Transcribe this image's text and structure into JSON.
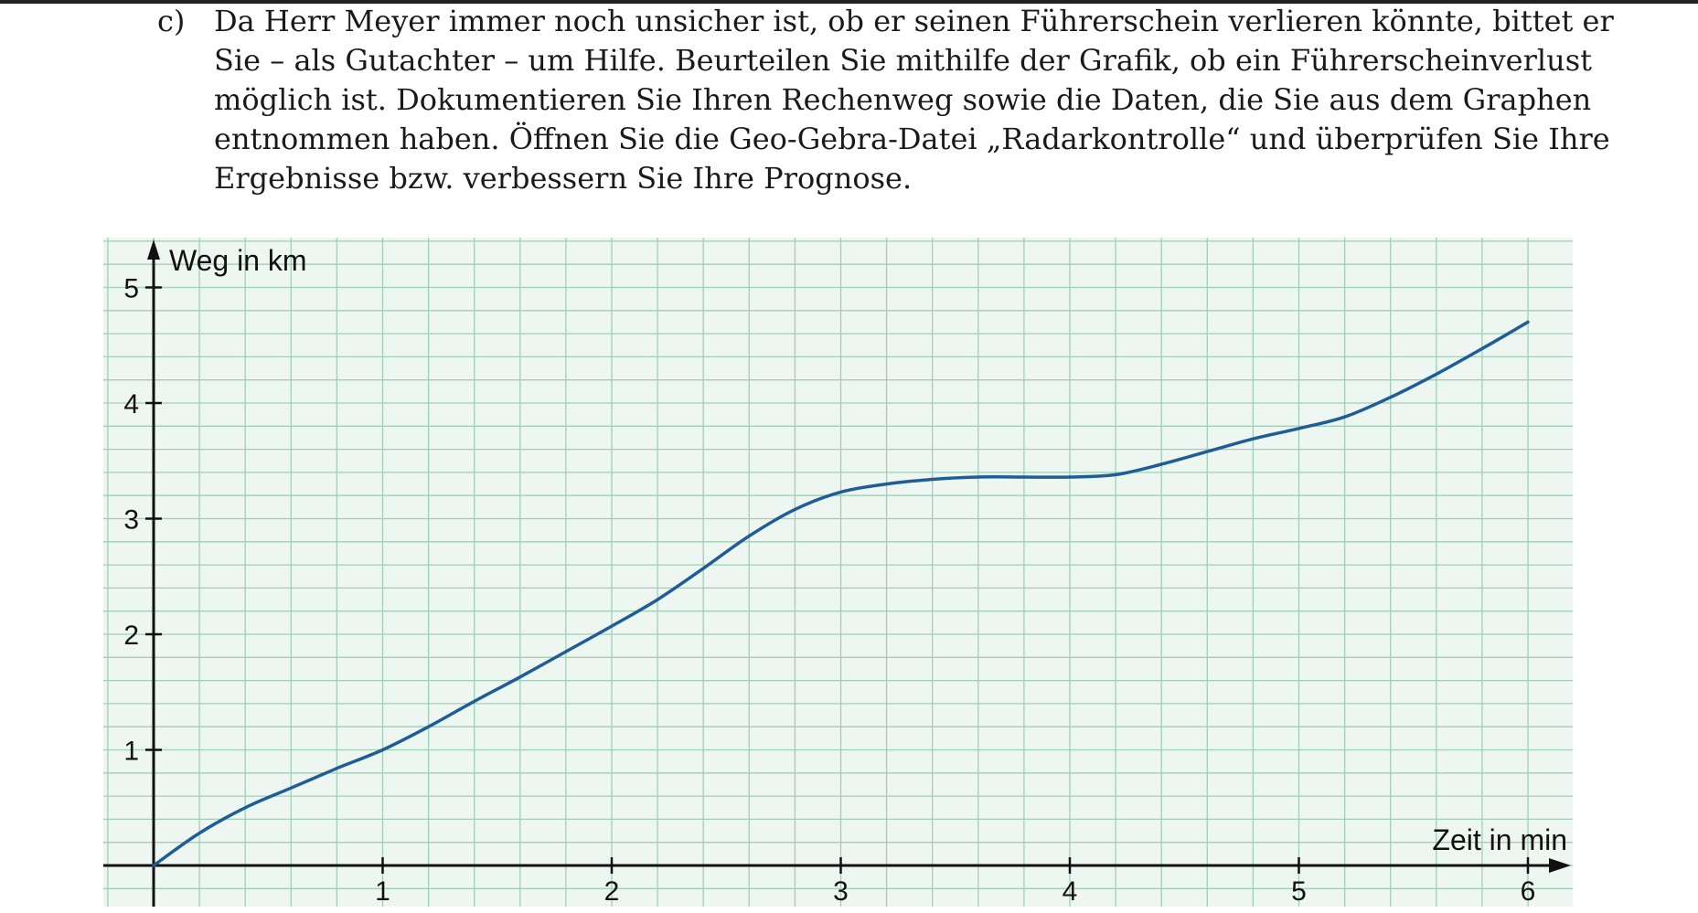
{
  "task": {
    "label": "c)",
    "lines": [
      "Da Herr Meyer immer noch unsicher ist, ob er seinen Führerschein verlieren könnte, bittet er",
      "Sie – als Gutachter – um Hilfe. Beurteilen Sie mithilfe der Grafik, ob ein Führerscheinverlust",
      "möglich ist. Dokumentieren Sie Ihren Rechenweg sowie die Daten, die Sie aus dem Graphen",
      "entnommen haben. Öffnen Sie die Geo-Gebra-Datei „Radarkontrolle“ und überprüfen Sie Ihre",
      "Ergebnisse bzw. verbessern Sie Ihre Prognose."
    ]
  },
  "colors": {
    "paper": "#eef6f1",
    "grid": "#9fd0b4",
    "axis": "#111111",
    "curve": "#1f5d96"
  },
  "chart_data": {
    "type": "line",
    "xlabel": "Zeit in min",
    "ylabel": "Weg in km",
    "xlim": [
      0,
      6.2
    ],
    "ylim": [
      0,
      5.2
    ],
    "xticks": [
      "1",
      "2",
      "3",
      "4",
      "5",
      "6"
    ],
    "yticks": [
      "1",
      "2",
      "3",
      "4",
      "5"
    ],
    "grid": true,
    "grid_step": 0.2,
    "series": [
      {
        "x": [
          0,
          0.2,
          0.4,
          0.6,
          0.8,
          1.0,
          1.2,
          1.4,
          1.6,
          1.8,
          2.0,
          2.2,
          2.4,
          2.6,
          2.8,
          3.0,
          3.2,
          3.4,
          3.6,
          3.8,
          4.0,
          4.2,
          4.4,
          4.6,
          4.8,
          5.0,
          5.2,
          5.4,
          5.6,
          5.8,
          6.0
        ],
        "y": [
          0,
          0.28,
          0.5,
          0.67,
          0.84,
          1.0,
          1.2,
          1.42,
          1.63,
          1.85,
          2.07,
          2.3,
          2.57,
          2.85,
          3.08,
          3.23,
          3.3,
          3.34,
          3.36,
          3.36,
          3.36,
          3.38,
          3.47,
          3.58,
          3.69,
          3.78,
          3.88,
          4.05,
          4.25,
          4.47,
          4.7
        ]
      }
    ]
  }
}
